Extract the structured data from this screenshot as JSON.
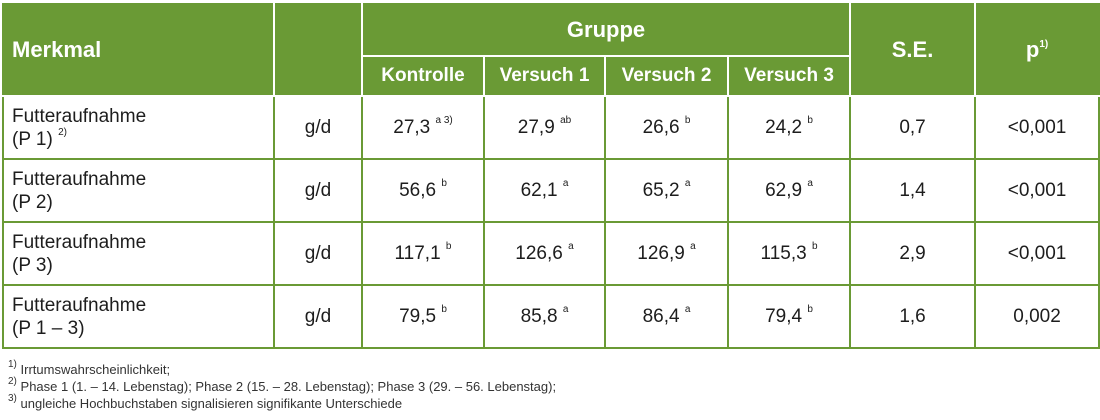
{
  "table": {
    "headers": {
      "merkmal": "Merkmal",
      "gruppe": "Gruppe",
      "kontrolle": "Kontrolle",
      "versuch1": "Versuch 1",
      "versuch2": "Versuch 2",
      "versuch3": "Versuch 3",
      "se": "S.E.",
      "p": "p",
      "p_sup": "1)"
    },
    "rows": [
      {
        "merkmal_line1": "Futteraufnahme",
        "merkmal_line2": "(P 1)",
        "merkmal_sup": "2)",
        "unit": "g/d",
        "kontrolle": "27,3",
        "kontrolle_sup": "a 3)",
        "versuch1": "27,9",
        "versuch1_sup": "ab",
        "versuch2": "26,6",
        "versuch2_sup": "b",
        "versuch3": "24,2",
        "versuch3_sup": "b",
        "se": "0,7",
        "p": "<0,001"
      },
      {
        "merkmal_line1": "Futteraufnahme",
        "merkmal_line2": "(P 2)",
        "merkmal_sup": "",
        "unit": "g/d",
        "kontrolle": "56,6",
        "kontrolle_sup": "b",
        "versuch1": "62,1",
        "versuch1_sup": "a",
        "versuch2": "65,2",
        "versuch2_sup": "a",
        "versuch3": "62,9",
        "versuch3_sup": "a",
        "se": "1,4",
        "p": "<0,001"
      },
      {
        "merkmal_line1": "Futteraufnahme",
        "merkmal_line2": "(P 3)",
        "merkmal_sup": "",
        "unit": "g/d",
        "kontrolle": "117,1",
        "kontrolle_sup": "b",
        "versuch1": "126,6",
        "versuch1_sup": "a",
        "versuch2": "126,9",
        "versuch2_sup": "a",
        "versuch3": "115,3",
        "versuch3_sup": "b",
        "se": "2,9",
        "p": "<0,001"
      },
      {
        "merkmal_line1": "Futteraufnahme",
        "merkmal_line2": "(P 1 – 3)",
        "merkmal_sup": "",
        "unit": "g/d",
        "kontrolle": "79,5",
        "kontrolle_sup": "b",
        "versuch1": "85,8",
        "versuch1_sup": "a",
        "versuch2": "86,4",
        "versuch2_sup": "a",
        "versuch3": "79,4",
        "versuch3_sup": "b",
        "se": "1,6",
        "p": "0,002"
      }
    ]
  },
  "footnotes": [
    {
      "marker": "1)",
      "text": "Irrtumswahrscheinlichkeit;"
    },
    {
      "marker": "2)",
      "text": "Phase 1 (1. – 14. Lebenstag); Phase 2 (15. – 28. Lebenstag); Phase 3 (29. – 56. Lebenstag);"
    },
    {
      "marker": "3)",
      "text": "ungleiche Hochbuchstaben signalisieren signifikante Unterschiede"
    }
  ],
  "colors": {
    "header_bg": "#6a9a35",
    "border": "#6a9a35",
    "header_text": "#ffffff"
  }
}
